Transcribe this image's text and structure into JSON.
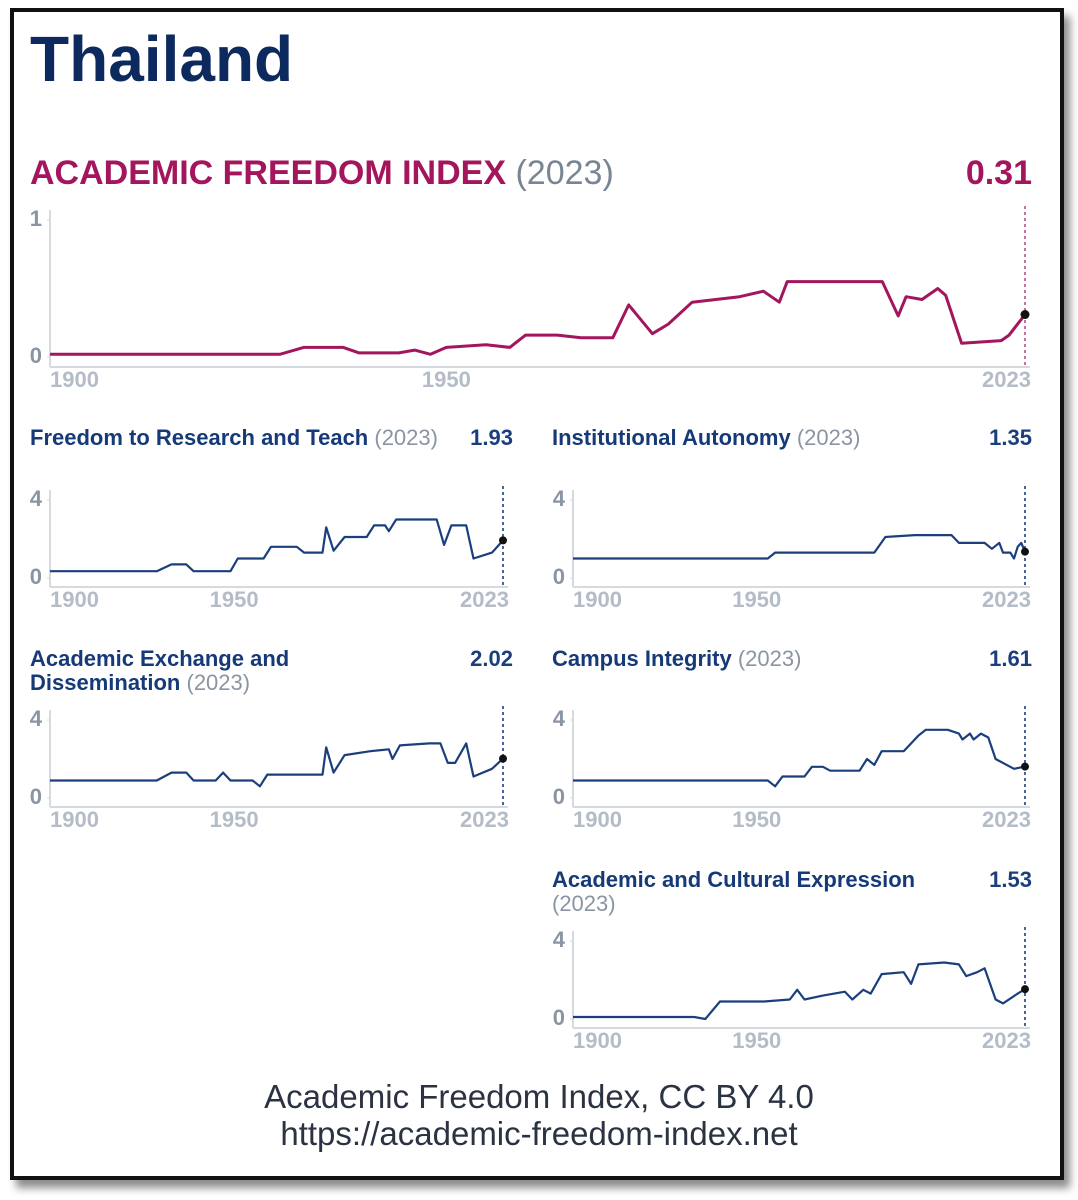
{
  "title": "Thailand",
  "chart_data": [
    {
      "type": "line",
      "title": "ACADEMIC FREEDOM INDEX",
      "subtitle": "(2023)",
      "latest": 0.31,
      "color": "#a3155d",
      "xlim": [
        1900,
        2023
      ],
      "xticks": [
        1900,
        1950,
        2023
      ],
      "ylim": [
        0,
        1
      ],
      "yticks": [
        0,
        1
      ],
      "x": [
        1900,
        1929,
        1932,
        1937,
        1939,
        1944,
        1946,
        1948,
        1950,
        1955,
        1958,
        1960,
        1964,
        1967,
        1971,
        1973,
        1976,
        1978,
        1981,
        1987,
        1990,
        1992,
        1993,
        2005,
        2007,
        2008,
        2010,
        2012,
        2013,
        2015,
        2020,
        2021,
        2023
      ],
      "values": [
        0.02,
        0.02,
        0.07,
        0.07,
        0.03,
        0.03,
        0.05,
        0.02,
        0.07,
        0.09,
        0.07,
        0.16,
        0.16,
        0.14,
        0.14,
        0.38,
        0.17,
        0.24,
        0.4,
        0.44,
        0.48,
        0.4,
        0.55,
        0.55,
        0.3,
        0.44,
        0.42,
        0.5,
        0.45,
        0.1,
        0.12,
        0.16,
        0.31
      ]
    },
    {
      "type": "line",
      "title": "Freedom to Research and Teach",
      "subtitle": "(2023)",
      "latest": 1.93,
      "color": "#1b3f7d",
      "xlim": [
        1900,
        2023
      ],
      "xticks": [
        1900,
        1950,
        2023
      ],
      "ylim": [
        0,
        4
      ],
      "yticks": [
        0,
        4
      ],
      "x": [
        1900,
        1929,
        1933,
        1937,
        1939,
        1949,
        1951,
        1958,
        1960,
        1967,
        1969,
        1974,
        1975,
        1977,
        1980,
        1986,
        1988,
        1991,
        1992,
        1994,
        2005,
        2007,
        2009,
        2013,
        2015,
        2020,
        2023
      ],
      "values": [
        0.35,
        0.35,
        0.7,
        0.7,
        0.35,
        0.35,
        1.0,
        1.0,
        1.6,
        1.6,
        1.3,
        1.3,
        2.6,
        1.4,
        2.1,
        2.1,
        2.7,
        2.7,
        2.4,
        3.0,
        3.0,
        1.7,
        2.7,
        2.7,
        1.0,
        1.3,
        1.93
      ]
    },
    {
      "type": "line",
      "title": "Institutional Autonomy",
      "subtitle": "(2023)",
      "latest": 1.35,
      "color": "#1b3f7d",
      "xlim": [
        1900,
        2023
      ],
      "xticks": [
        1900,
        1950,
        2023
      ],
      "ylim": [
        0,
        4
      ],
      "yticks": [
        0,
        4
      ],
      "x": [
        1900,
        1953,
        1955,
        1982,
        1985,
        1993,
        2003,
        2005,
        2012,
        2014,
        2016,
        2017,
        2019,
        2020,
        2021,
        2022,
        2023
      ],
      "values": [
        1.0,
        1.0,
        1.3,
        1.3,
        2.1,
        2.2,
        2.2,
        1.8,
        1.8,
        1.5,
        1.8,
        1.3,
        1.3,
        1.0,
        1.6,
        1.8,
        1.35
      ]
    },
    {
      "type": "line",
      "title": "Academic Exchange and Dissemination",
      "subtitle": "(2023)",
      "latest": 2.02,
      "color": "#1b3f7d",
      "xlim": [
        1900,
        2023
      ],
      "xticks": [
        1900,
        1950,
        2023
      ],
      "ylim": [
        0,
        4
      ],
      "yticks": [
        0,
        4
      ],
      "x": [
        1900,
        1929,
        1933,
        1937,
        1939,
        1945,
        1947,
        1949,
        1955,
        1957,
        1959,
        1967,
        1974,
        1975,
        1977,
        1980,
        1987,
        1992,
        1993,
        1995,
        2003,
        2006,
        2008,
        2010,
        2013,
        2015,
        2020,
        2023
      ],
      "values": [
        0.9,
        0.9,
        1.3,
        1.3,
        0.9,
        0.9,
        1.3,
        0.9,
        0.9,
        0.6,
        1.2,
        1.2,
        1.2,
        2.6,
        1.3,
        2.2,
        2.4,
        2.5,
        2.0,
        2.7,
        2.8,
        2.8,
        1.8,
        1.8,
        2.8,
        1.1,
        1.5,
        2.02
      ]
    },
    {
      "type": "line",
      "title": "Campus Integrity",
      "subtitle": "(2023)",
      "latest": 1.61,
      "color": "#1b3f7d",
      "xlim": [
        1900,
        2023
      ],
      "xticks": [
        1900,
        1950,
        2023
      ],
      "ylim": [
        0,
        4
      ],
      "yticks": [
        0,
        4
      ],
      "x": [
        1900,
        1953,
        1955,
        1957,
        1963,
        1965,
        1968,
        1970,
        1978,
        1980,
        1982,
        1984,
        1990,
        1994,
        1996,
        2002,
        2005,
        2006,
        2008,
        2009,
        2011,
        2013,
        2015,
        2020,
        2023
      ],
      "values": [
        0.9,
        0.9,
        0.6,
        1.1,
        1.1,
        1.6,
        1.6,
        1.4,
        1.4,
        2.0,
        1.7,
        2.4,
        2.4,
        3.2,
        3.5,
        3.5,
        3.3,
        3.0,
        3.3,
        3.0,
        3.3,
        3.1,
        2.0,
        1.5,
        1.61
      ]
    },
    {
      "type": "line",
      "title": "Academic and Cultural Expression",
      "subtitle": "(2023)",
      "latest": 1.53,
      "color": "#1b3f7d",
      "xlim": [
        1900,
        2023
      ],
      "xticks": [
        1900,
        1950,
        2023
      ],
      "ylim": [
        0,
        4
      ],
      "yticks": [
        0,
        4
      ],
      "x": [
        1900,
        1933,
        1936,
        1940,
        1952,
        1959,
        1961,
        1963,
        1968,
        1974,
        1976,
        1979,
        1981,
        1984,
        1990,
        1992,
        1994,
        2001,
        2005,
        2007,
        2010,
        2012,
        2015,
        2017,
        2021,
        2023
      ],
      "values": [
        0.1,
        0.1,
        0.0,
        0.9,
        0.9,
        1.0,
        1.5,
        1.0,
        1.2,
        1.4,
        1.0,
        1.5,
        1.3,
        2.3,
        2.4,
        1.8,
        2.8,
        2.9,
        2.8,
        2.2,
        2.4,
        2.6,
        1.0,
        0.8,
        1.3,
        1.53
      ]
    }
  ],
  "footer": {
    "line1": "Academic Freedom Index, CC BY 4.0",
    "line2": "https://academic-freedom-index.net"
  }
}
